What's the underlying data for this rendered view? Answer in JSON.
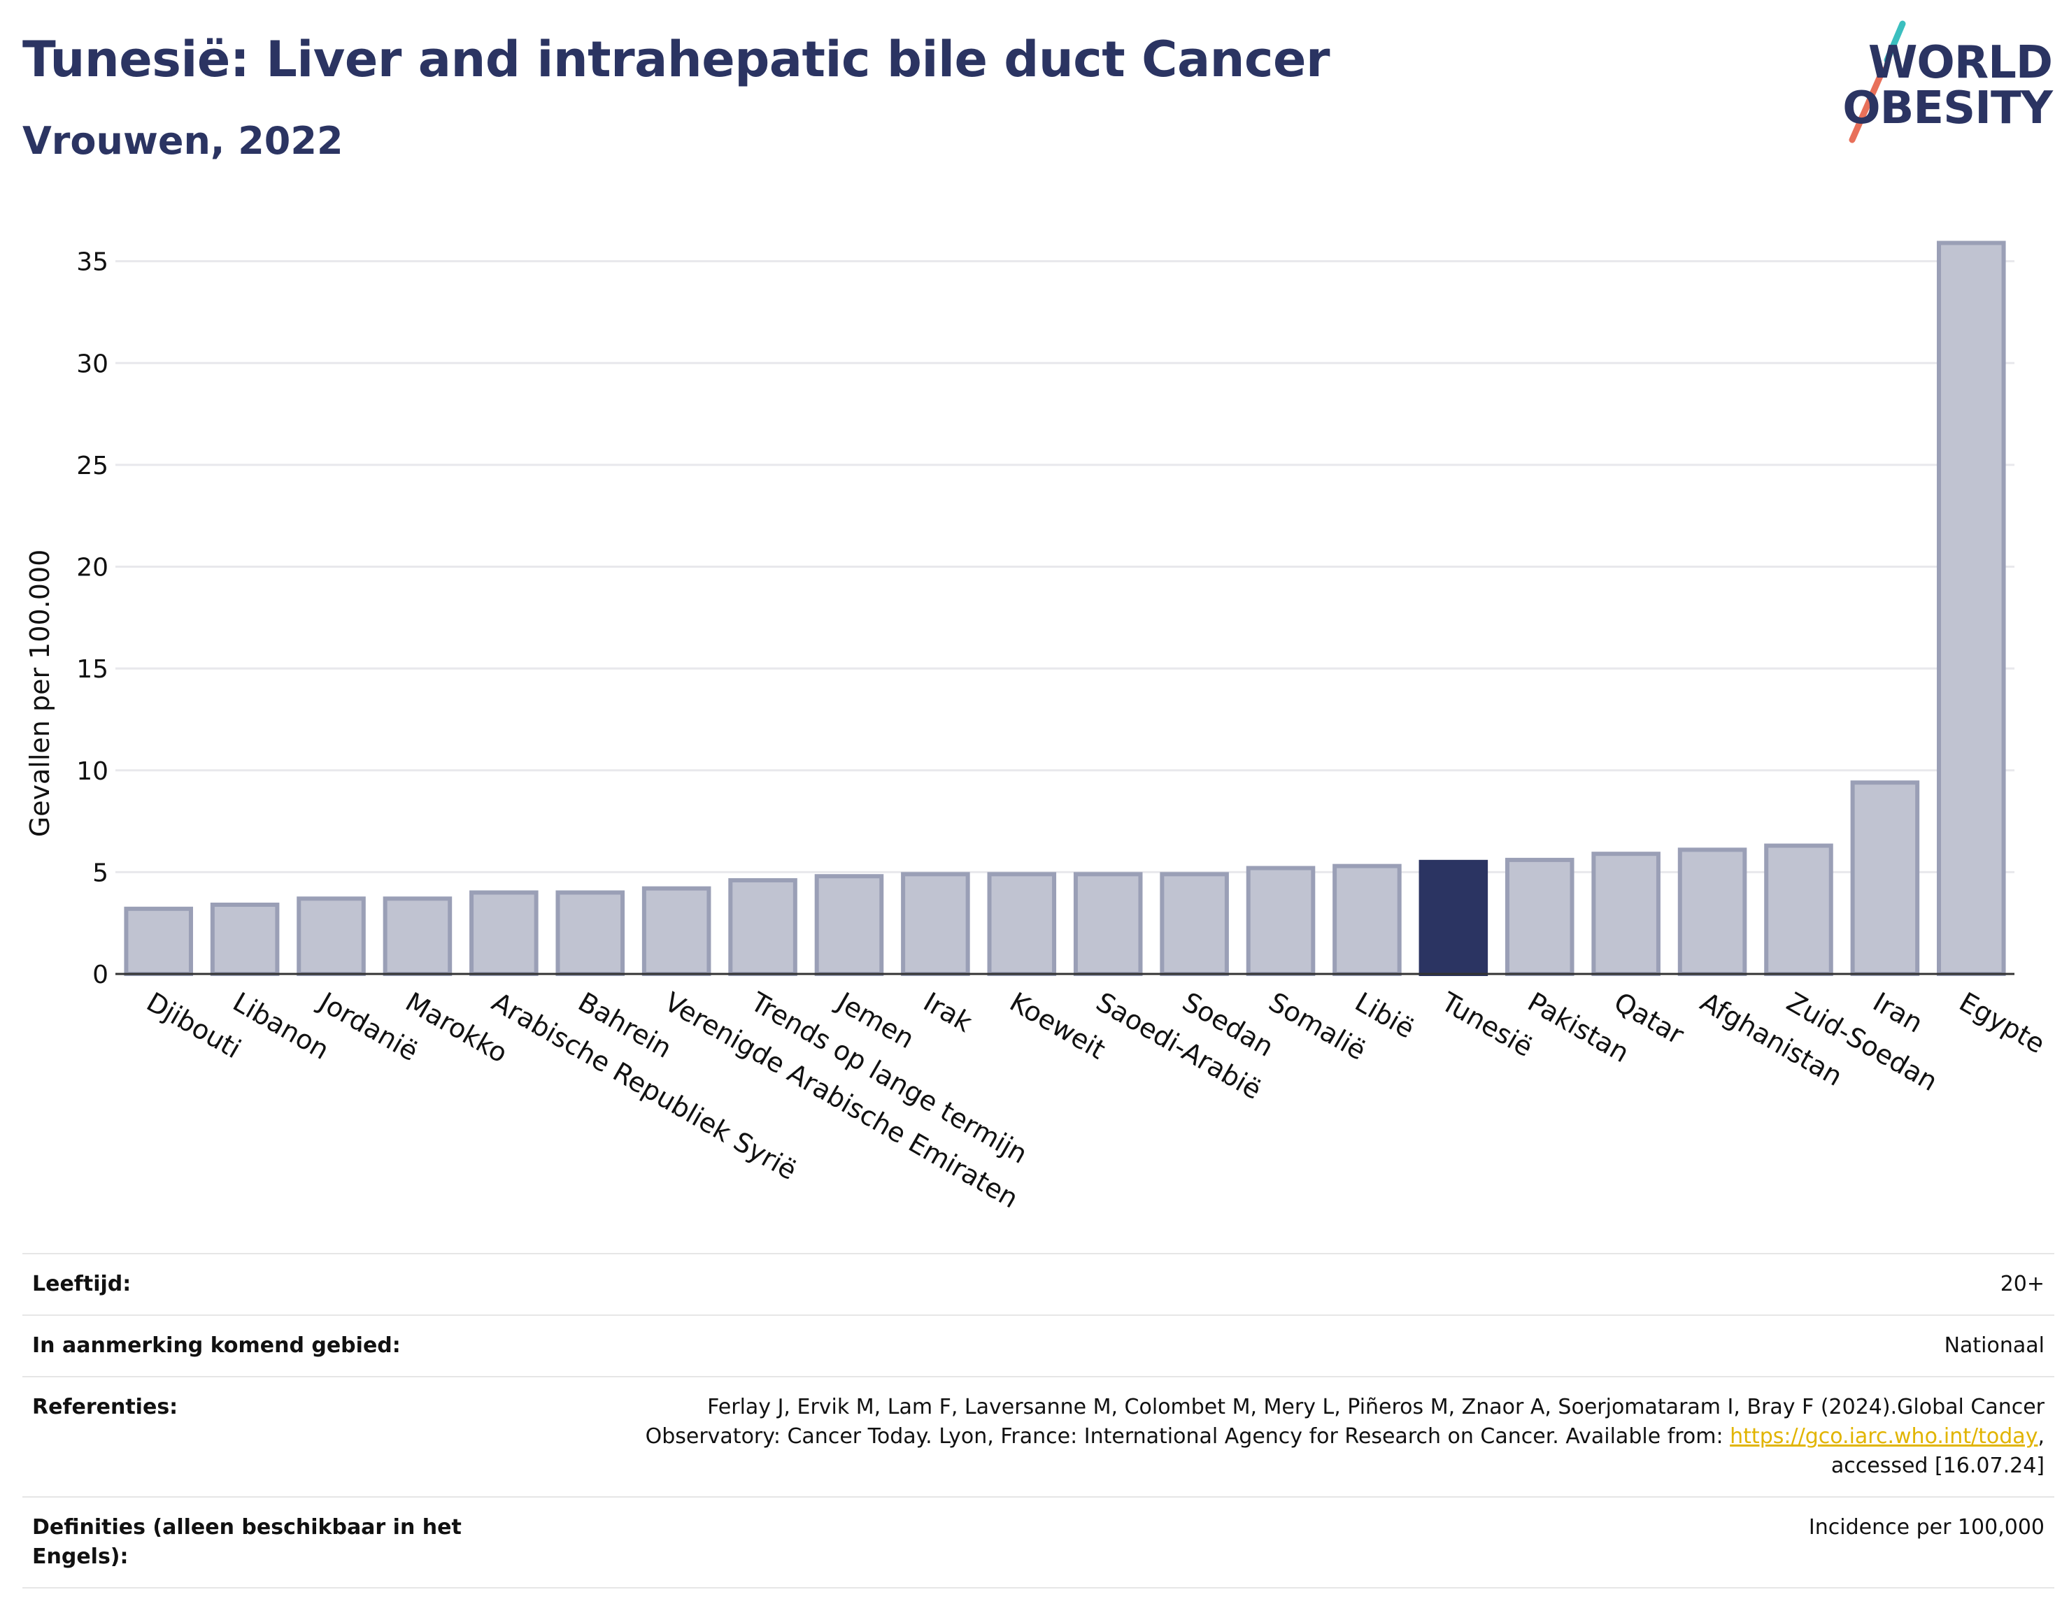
{
  "header": {
    "title": "Tunesië: Liver and intrahepatic bile duct Cancer",
    "subtitle": "Vrouwen, 2022"
  },
  "logo": {
    "line1": "WORLD",
    "line2": "OBESITY",
    "colors": {
      "text": "#2b3462",
      "slash_top": "#3bbfbf",
      "slash_bottom": "#e8705a"
    }
  },
  "colors": {
    "bar": "#c0c3d1",
    "bar_border": "#9a9fb6",
    "highlight": "#2b3462",
    "grid": "#e8e8ec",
    "axis": "#333333"
  },
  "chart_data": {
    "type": "bar",
    "ylabel": "Gevallen per 100.000",
    "ylim": [
      0,
      36.5
    ],
    "yticks": [
      0,
      5,
      10,
      15,
      20,
      25,
      30,
      35
    ],
    "grid": true,
    "highlight": "Tunesië",
    "categories": [
      "Djibouti",
      "Libanon",
      "Jordanië",
      "Marokko",
      "Arabische Republiek Syrië",
      "Bahrein",
      "Verenigde Arabische Emiraten",
      "Trends op lange termijn",
      "Jemen",
      "Irak",
      "Koeweit",
      "Saoedi-Arabië",
      "Soedan",
      "Somalië",
      "Libië",
      "Tunesië",
      "Pakistan",
      "Qatar",
      "Afghanistan",
      "Zuid-Soedan",
      "Iran",
      "Egypte"
    ],
    "values": [
      3.2,
      3.4,
      3.7,
      3.7,
      4.0,
      4.0,
      4.2,
      4.6,
      4.8,
      4.9,
      4.9,
      4.9,
      4.9,
      5.2,
      5.3,
      5.5,
      5.6,
      5.9,
      6.1,
      6.3,
      9.4,
      35.9
    ]
  },
  "meta": {
    "rows": [
      {
        "key": "Leeftijd:",
        "value": "20+"
      },
      {
        "key": "In aanmerking komend gebied:",
        "value": "Nationaal"
      },
      {
        "key": "Referenties:",
        "value_before": "Ferlay J, Ervik M, Lam F, Laversanne M, Colombet M, Mery L, Piñeros M, Znaor A, Soerjomataram I, Bray F (2024).Global Cancer Observatory: Cancer Today. Lyon, France: International Agency for Research on Cancer. Available from: ",
        "link": "https://gco.iarc.who.int/today",
        "value_after": ", accessed [16.07.24]"
      },
      {
        "key": "Definities (alleen beschikbaar in het Engels):",
        "value": "Incidence per 100,000"
      }
    ]
  }
}
